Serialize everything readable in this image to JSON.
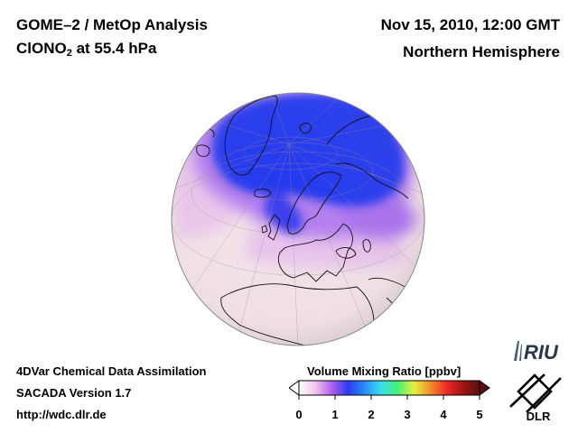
{
  "header": {
    "title_line1": "GOME–2 / MetOp Analysis",
    "species_prefix": "ClONO",
    "species_subscript": "2",
    "species_suffix": " at 55.4 hPa",
    "date": "Nov 15, 2010, 12:00 GMT",
    "region": "Northern Hemisphere"
  },
  "footer": {
    "line1": "4DVar Chemical Data Assimilation",
    "line2": "SACADA Version 1.7",
    "line3": "http://wdc.dlr.de"
  },
  "colorbar": {
    "title": "Volume Mixing Ratio [ppbv]",
    "ticks": [
      "0",
      "1",
      "2",
      "3",
      "4",
      "5"
    ],
    "range": [
      0,
      5
    ],
    "colors": [
      "#ffffff",
      "#f2c6ec",
      "#b060ee",
      "#2b3cf0",
      "#2a8cf6",
      "#39e0f0",
      "#44f074",
      "#e6f040",
      "#f09028",
      "#f02828",
      "#a01414",
      "#5a1010"
    ]
  },
  "logos": {
    "riu": "RIU",
    "dlr": "DLR"
  },
  "colors": {
    "low": "#f5e4ea",
    "pink": "#e9c4ec",
    "violet": "#a36cf0",
    "blue": "#2436ee"
  }
}
